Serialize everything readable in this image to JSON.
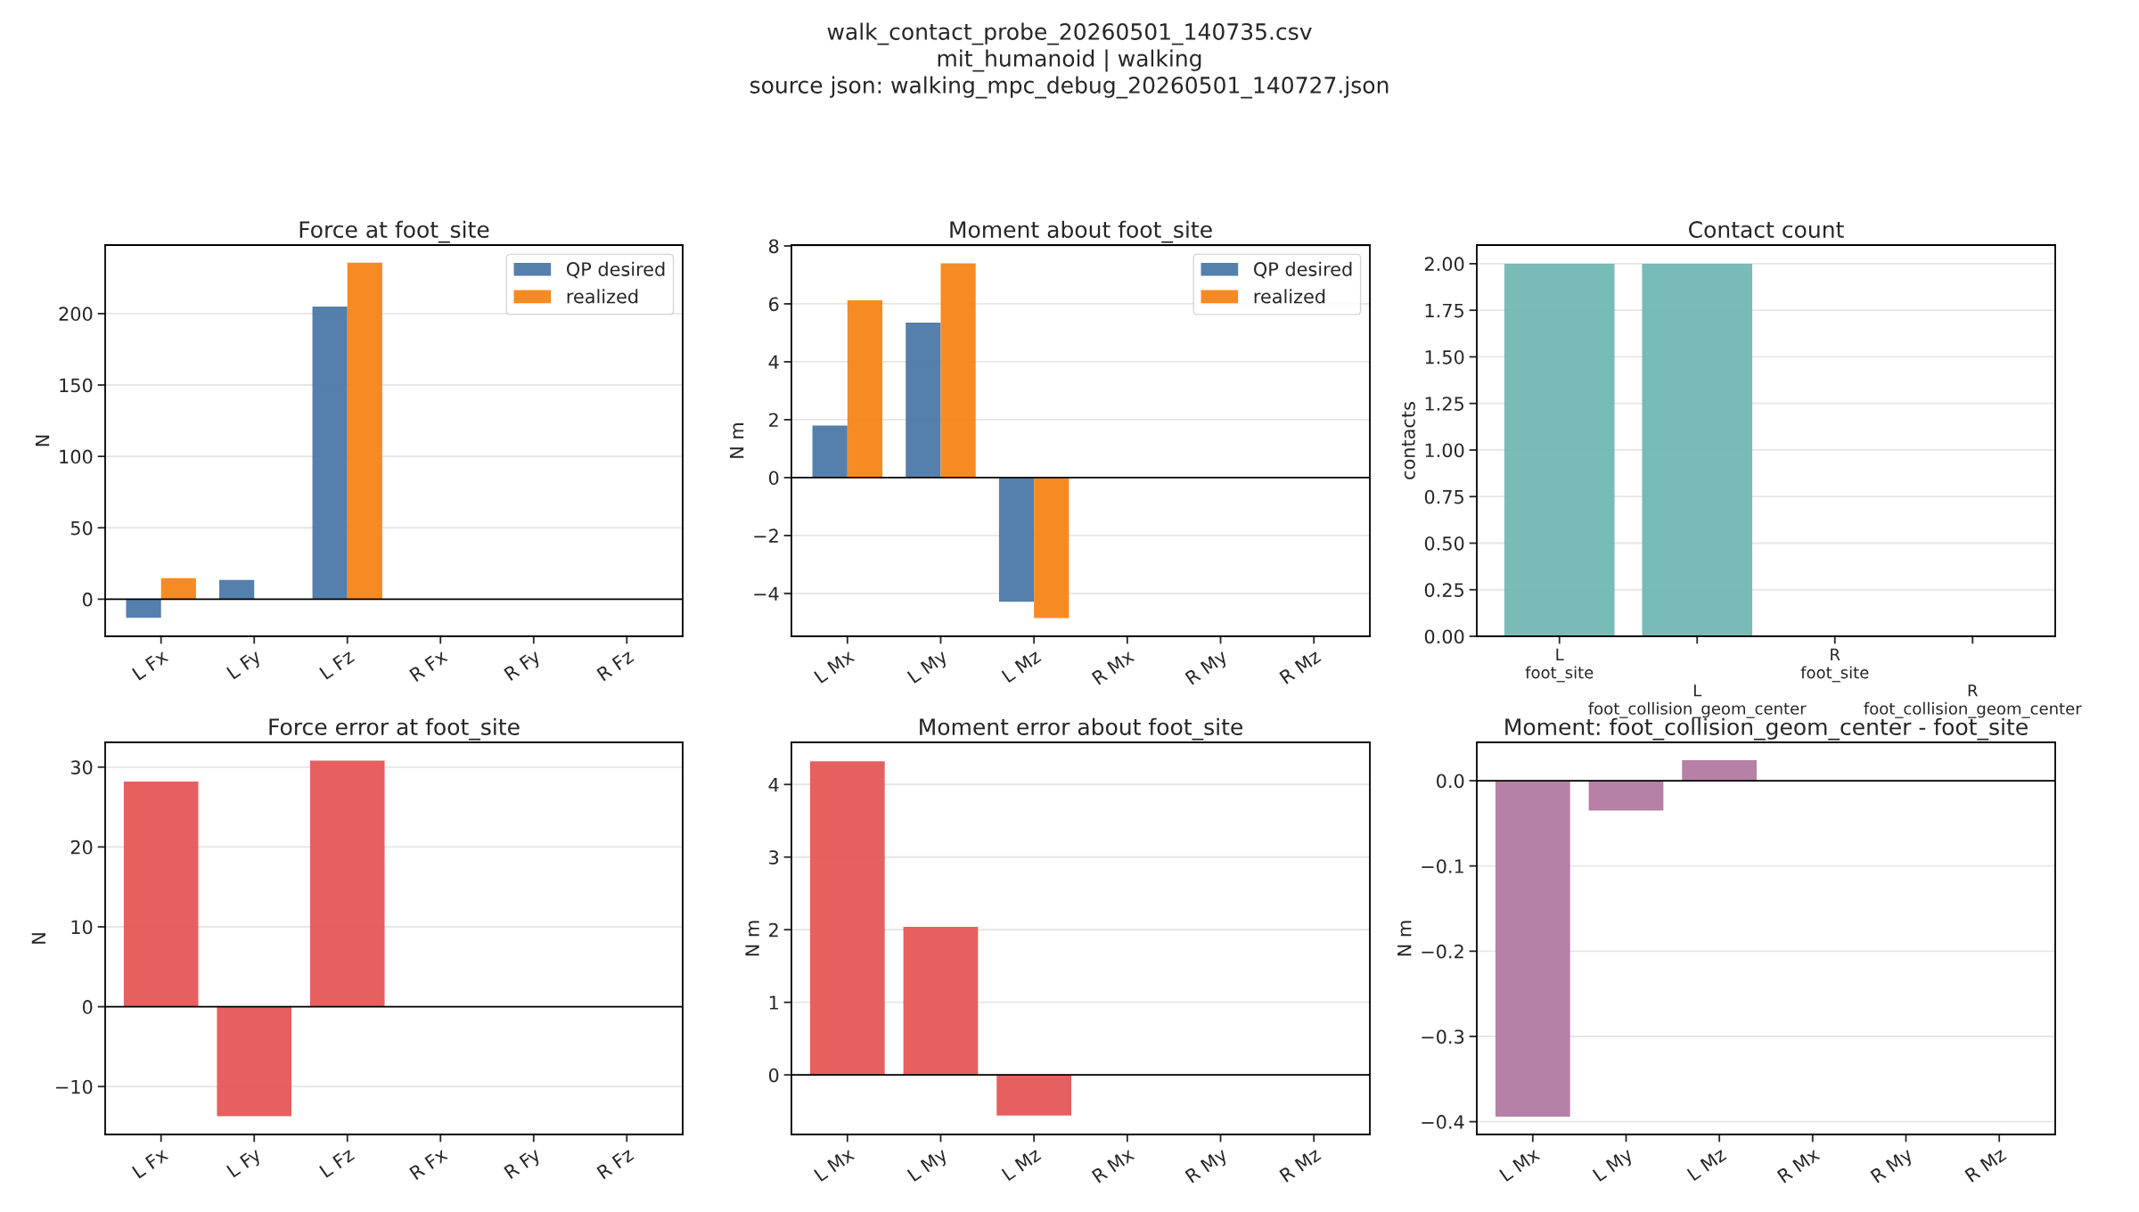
{
  "chart_data": [
    {
      "type": "bar",
      "title": "Force at foot_site",
      "ylabel": "N",
      "annotations": [
        "walk_contact_probe_20260501_140735.csv",
        "mit_humanoid | walking",
        "source json: walking_mpc_debug_20260501_140727.json"
      ],
      "categories": [
        "L Fx",
        "L Fy",
        "L Fz",
        "R Fx",
        "R Fy",
        "R Fz"
      ],
      "series": [
        {
          "name": "QP desired",
          "color": "#4c78a8",
          "values": [
            -13,
            13.4,
            205,
            0,
            0,
            0
          ]
        },
        {
          "name": "realized",
          "color": "#f58518",
          "values": [
            14.7,
            0,
            235.6,
            0,
            0,
            0
          ]
        }
      ],
      "ylim": [
        -26,
        248
      ],
      "yticks": [
        0,
        50,
        100,
        150,
        200
      ],
      "grid": "y",
      "legend": "top right",
      "ref_lines": [
        {
          "axis": "y",
          "value": 0,
          "color": "#000000"
        }
      ]
    },
    {
      "type": "bar",
      "title": "Moment about foot_site",
      "ylabel": "N m",
      "categories": [
        "L Mx",
        "L My",
        "L Mz",
        "R Mx",
        "R My",
        "R Mz"
      ],
      "series": [
        {
          "name": "QP desired",
          "color": "#4c78a8",
          "values": [
            1.8,
            5.35,
            -4.29,
            0,
            0,
            0
          ]
        },
        {
          "name": "realized",
          "color": "#f58518",
          "values": [
            6.12,
            7.4,
            -4.85,
            0,
            0,
            0
          ]
        }
      ],
      "ylim": [
        -5.48,
        8.03
      ],
      "yticks": [
        {
          "value": -4,
          "label": "−4"
        },
        {
          "value": -2,
          "label": "−2"
        },
        0,
        2,
        4,
        6,
        8
      ],
      "grid": "y",
      "legend": "top right",
      "ref_lines": [
        {
          "axis": "y",
          "value": 0,
          "color": "#000000"
        }
      ]
    },
    {
      "type": "bar",
      "title": "Contact count",
      "ylabel": "contacts",
      "categories": [
        "L\nfoot_site",
        "L\nfoot_collision_geom_center",
        "R\nfoot_site",
        "R\nfoot_collision_geom_center"
      ],
      "series": [
        {
          "color": "#72b7b2",
          "values": [
            2,
            2,
            0,
            0
          ]
        }
      ],
      "ylim": [
        0,
        2.1
      ],
      "yticks": [
        {
          "value": 0,
          "label": "0.00"
        },
        {
          "value": 0.25,
          "label": "0.25"
        },
        {
          "value": 0.5,
          "label": "0.50"
        },
        {
          "value": 0.75,
          "label": "0.75"
        },
        {
          "value": 1,
          "label": "1.00"
        },
        {
          "value": 1.25,
          "label": "1.25"
        },
        {
          "value": 1.5,
          "label": "1.50"
        },
        {
          "value": 1.75,
          "label": "1.75"
        },
        {
          "value": 2,
          "label": "2.00"
        }
      ],
      "grid": "y"
    },
    {
      "type": "bar",
      "title": "Force error at foot_site",
      "ylabel": "N",
      "categories": [
        "L Fx",
        "L Fy",
        "L Fz",
        "R Fx",
        "R Fy",
        "R Fz"
      ],
      "series": [
        {
          "color": "#e45756",
          "values": [
            28.2,
            -13.7,
            30.8,
            0,
            0,
            0
          ]
        }
      ],
      "ylim": [
        -16,
        33.1
      ],
      "yticks": [
        {
          "value": -10,
          "label": "−10"
        },
        0,
        10,
        20,
        30
      ],
      "grid": "y",
      "ref_lines": [
        {
          "axis": "y",
          "value": 0,
          "color": "#000000"
        }
      ]
    },
    {
      "type": "bar",
      "title": "Moment error about foot_site",
      "ylabel": "N m",
      "categories": [
        "L Mx",
        "L My",
        "L Mz",
        "R Mx",
        "R My",
        "R Mz"
      ],
      "series": [
        {
          "color": "#e45756",
          "values": [
            4.32,
            2.04,
            -0.56,
            0,
            0,
            0
          ]
        }
      ],
      "ylim": [
        -0.82,
        4.58
      ],
      "yticks": [
        0,
        1,
        2,
        3,
        4
      ],
      "grid": "y",
      "ref_lines": [
        {
          "axis": "y",
          "value": 0,
          "color": "#000000"
        }
      ]
    },
    {
      "type": "bar",
      "title": "Moment: foot_collision_geom_center - foot_site",
      "ylabel": "N m",
      "categories": [
        "L Mx",
        "L My",
        "L Mz",
        "R Mx",
        "R My",
        "R Mz"
      ],
      "series": [
        {
          "color": "#b279a2",
          "values": [
            -0.394,
            -0.035,
            0.024,
            0,
            0,
            0
          ]
        }
      ],
      "ylim": [
        -0.415,
        0.045
      ],
      "yticks": [
        {
          "value": -0.4,
          "label": "−0.4"
        },
        {
          "value": -0.3,
          "label": "−0.3"
        },
        {
          "value": -0.2,
          "label": "−0.2"
        },
        {
          "value": -0.1,
          "label": "−0.1"
        },
        {
          "value": 0,
          "label": "0.0"
        }
      ],
      "grid": "y",
      "ref_lines": [
        {
          "axis": "y",
          "value": 0,
          "color": "#000000"
        }
      ]
    }
  ]
}
